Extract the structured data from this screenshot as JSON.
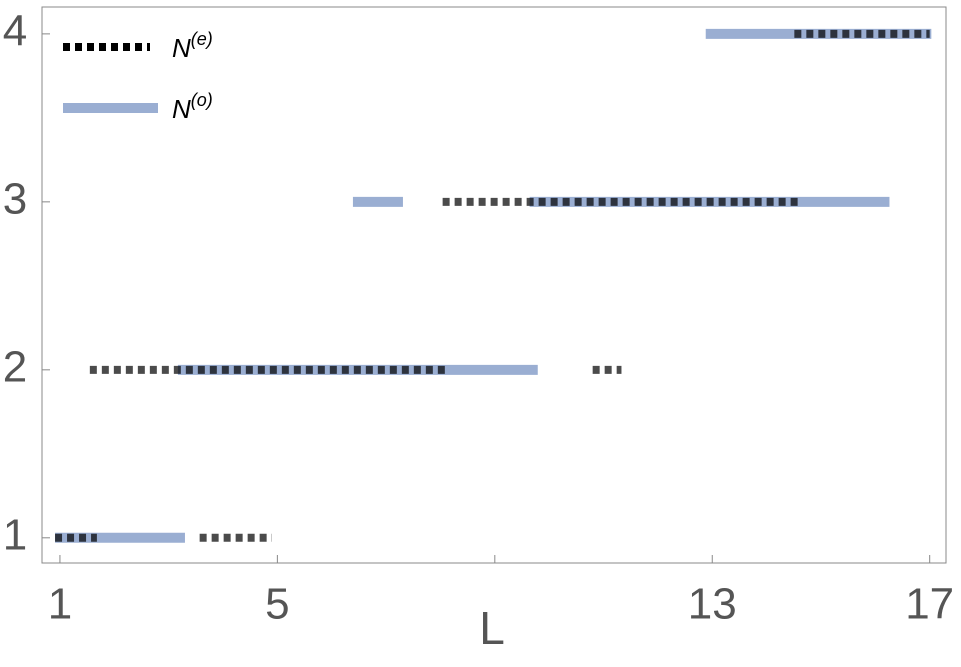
{
  "chart_data": {
    "type": "segments",
    "x_label": "L",
    "xlim": [
      0.67,
      17.3
    ],
    "xticks": [
      1,
      5,
      13,
      17
    ],
    "xminorticks": [
      9
    ],
    "ylim": [
      0.85,
      4.16
    ],
    "yticks": [
      1,
      2,
      3,
      4
    ],
    "series": [
      {
        "name": "N",
        "name_sup": "(e)",
        "color": "#000000",
        "style": "dotted",
        "segments": [
          {
            "x": [
              0.91,
              1.68
            ],
            "y": 1
          },
          {
            "x": [
              3.57,
              4.9
            ],
            "y": 1
          },
          {
            "x": [
              1.55,
              8.17
            ],
            "y": 2
          },
          {
            "x": [
              10.8,
              11.33
            ],
            "y": 2
          },
          {
            "x": [
              8.04,
              14.6
            ],
            "y": 3
          },
          {
            "x": [
              14.51,
              17
            ],
            "y": 4
          }
        ]
      },
      {
        "name": "N",
        "name_sup": "(o)",
        "color": "#9aaed2",
        "style": "solid",
        "segments": [
          {
            "x": [
              0.91,
              3.3
            ],
            "y": 1
          },
          {
            "x": [
              3.17,
              9.79
            ],
            "y": 2
          },
          {
            "x": [
              6.39,
              7.31
            ],
            "y": 3
          },
          {
            "x": [
              9.64,
              16.26
            ],
            "y": 3
          },
          {
            "x": [
              12.88,
              17.03
            ],
            "y": 4
          }
        ]
      }
    ]
  }
}
